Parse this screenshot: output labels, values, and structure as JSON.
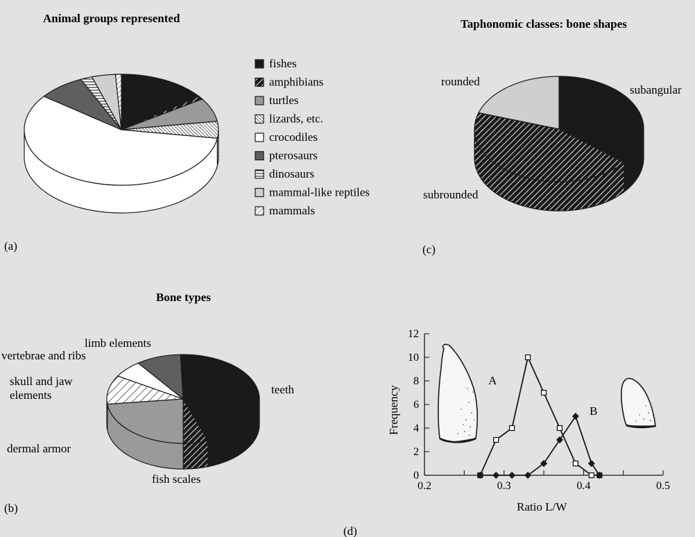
{
  "panels": {
    "a": "(a)",
    "b": "(b)",
    "c": "(c)",
    "d": "(d)"
  },
  "colors": {
    "background": "#e2e2e2",
    "black": "#1a1a1a",
    "dark_gray": "#5f5f5f",
    "mid_gray": "#9a9a9a",
    "light_gray": "#cfcfcf",
    "white": "#ffffff"
  },
  "chart_data": [
    {
      "type": "pie",
      "style": "3d",
      "title": "Animal groups represented",
      "legend_position": "right",
      "categories": [
        "fishes",
        "amphibians",
        "turtles",
        "lizards, etc.",
        "crocodiles",
        "pterosaurs",
        "dinosaurs",
        "mammal-like reptiles",
        "mammals"
      ],
      "values": [
        15,
        1,
        7,
        5,
        59,
        8,
        2,
        4,
        1
      ],
      "fills": [
        "black",
        "diag-black",
        "mid-gray",
        "diag-dense",
        "white",
        "dark-gray",
        "hlines",
        "light-gray",
        "diag-sparse"
      ]
    },
    {
      "type": "pie",
      "style": "3d",
      "title": "Bone types",
      "categories": [
        "teeth",
        "fish scales",
        "dermal armor",
        "skull and jaw elements",
        "vertebrae and ribs",
        "limb elements"
      ],
      "values": [
        43,
        5,
        22,
        10,
        6,
        9
      ],
      "fills": [
        "black",
        "diag-black",
        "mid-gray",
        "diag-white",
        "white",
        "dark-gray"
      ]
    },
    {
      "type": "pie",
      "style": "3d",
      "title": "Taphonomic classes: bone shapes",
      "categories": [
        "subangular",
        "subrounded",
        "rounded"
      ],
      "values": [
        36,
        44,
        20
      ],
      "fills": [
        "black",
        "diag-black",
        "light-gray"
      ]
    },
    {
      "type": "line",
      "title": "",
      "xlabel": "Ratio L/W",
      "ylabel": "Frequency",
      "xlim": [
        0.2,
        0.5
      ],
      "ylim": [
        0,
        12
      ],
      "xticks": [
        "0.2",
        "0.3",
        "0.4",
        "0.5"
      ],
      "yticks": [
        "0",
        "2",
        "4",
        "6",
        "8",
        "10",
        "12"
      ],
      "grid": false,
      "series": [
        {
          "name": "A",
          "marker": "open-square",
          "x": [
            0.27,
            0.29,
            0.31,
            0.33,
            0.35,
            0.37,
            0.39,
            0.41,
            0.42
          ],
          "y": [
            0,
            3,
            4,
            10,
            7,
            4,
            1,
            0,
            0
          ]
        },
        {
          "name": "B",
          "marker": "filled-diamond",
          "x": [
            0.27,
            0.29,
            0.31,
            0.33,
            0.35,
            0.37,
            0.39,
            0.41,
            0.42
          ],
          "y": [
            0,
            0,
            0,
            0,
            1,
            3,
            5,
            1,
            0
          ]
        }
      ]
    }
  ]
}
